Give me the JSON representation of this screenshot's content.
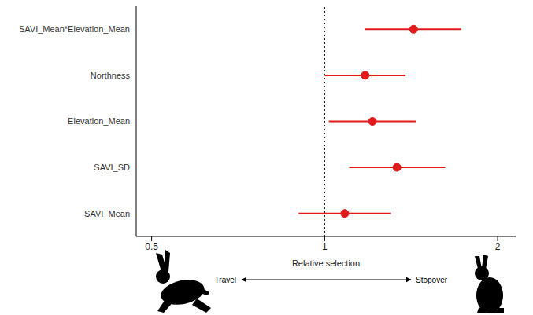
{
  "chart_data": {
    "type": "forest",
    "categories": [
      "SAVI_Mean",
      "SAVI_SD",
      "Elevation_Mean",
      "Northness",
      "SAVI_Mean*Elevation_Mean"
    ],
    "values": [
      1.084,
      1.336,
      1.211,
      1.176,
      1.428
    ],
    "lower": [
      0.901,
      1.103,
      1.017,
      1.0,
      1.176
    ],
    "upper": [
      1.305,
      1.621,
      1.44,
      1.383,
      1.728
    ],
    "color": "#e31a1c",
    "log": "x",
    "xlim": [
      0.47,
      2.15
    ],
    "xticks": [
      0.5,
      1,
      2
    ],
    "x_label": "Relative selection",
    "reference_line": 1,
    "direction_labels": [
      "Travel",
      "Stopover"
    ],
    "grid": false
  }
}
